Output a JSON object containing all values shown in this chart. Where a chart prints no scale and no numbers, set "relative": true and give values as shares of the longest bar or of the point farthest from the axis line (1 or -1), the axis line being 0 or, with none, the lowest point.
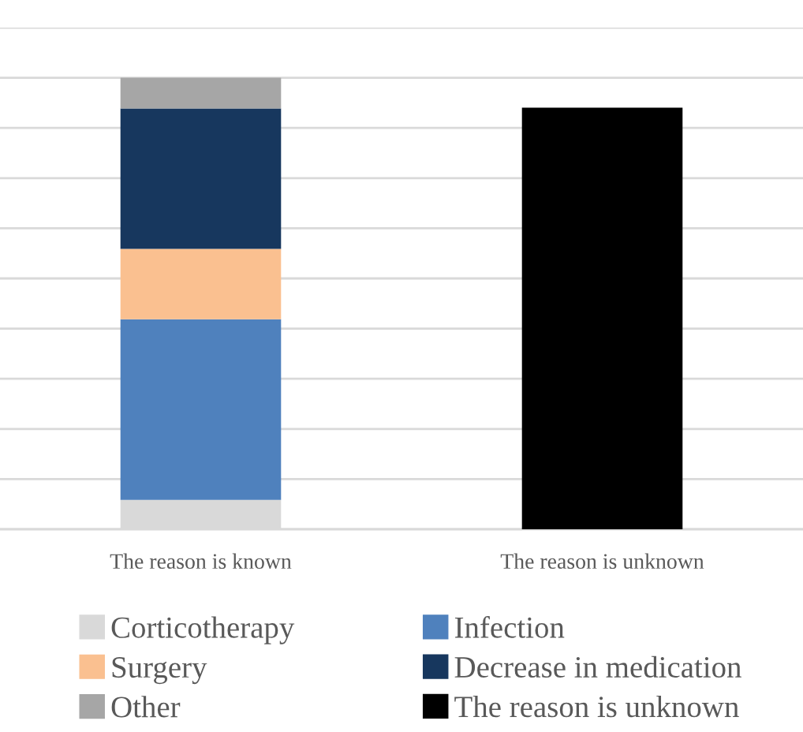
{
  "chart_data": {
    "type": "bar",
    "stacked": true,
    "relative": true,
    "grid": "y",
    "legend": "bottom",
    "categories": [
      "The reason is known",
      "The reason is unknown"
    ],
    "series": [
      {
        "name": "Corticotherapy",
        "color": "#d9d9d9",
        "values": [
          0.065,
          null
        ]
      },
      {
        "name": "Infection",
        "color": "#4f81bd",
        "values": [
          0.4,
          null
        ]
      },
      {
        "name": "Surgery",
        "color": "#fac090",
        "values": [
          0.156,
          null
        ]
      },
      {
        "name": "Decrease in medication",
        "color": "#17375e",
        "values": [
          0.311,
          null
        ]
      },
      {
        "name": "Other",
        "color": "#a6a6a6",
        "values": [
          0.068,
          null
        ]
      },
      {
        "name": "The reason is unknown",
        "color": "#000000",
        "values": [
          null,
          0.934
        ]
      }
    ]
  }
}
